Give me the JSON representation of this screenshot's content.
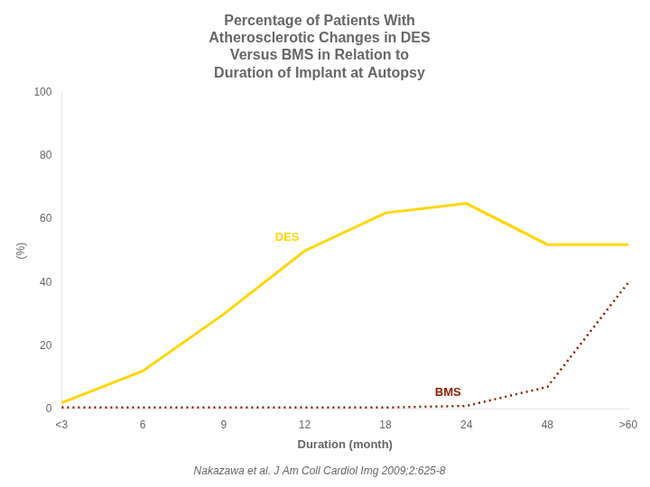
{
  "chart_data": {
    "type": "line",
    "title": "Percentage of Patients With\nAtherosclerotic Changes in DES\nVersus BMS in Relation to\nDuration of Implant at Autopsy",
    "xlabel": "Duration (month)",
    "ylabel": "(%)",
    "categories": [
      "<3",
      "6",
      "9",
      "12",
      "18",
      "24",
      "48",
      ">60"
    ],
    "series": [
      {
        "name": "DES",
        "color": "#FFD700",
        "line_style": "solid",
        "values": [
          2,
          12,
          30,
          50,
          62,
          65,
          52,
          52
        ]
      },
      {
        "name": "BMS",
        "color": "#8B2000",
        "line_style": "dotted",
        "values": [
          0.5,
          0.5,
          0.5,
          0.5,
          0.5,
          1,
          7,
          40
        ]
      }
    ],
    "ylim": [
      0,
      100
    ],
    "yticks": [
      0,
      20,
      40,
      60,
      80,
      100
    ],
    "grid": false,
    "annotations": [
      "Nakazawa et al. J Am Coll Cardiol Img 2009;2:625-8"
    ]
  }
}
